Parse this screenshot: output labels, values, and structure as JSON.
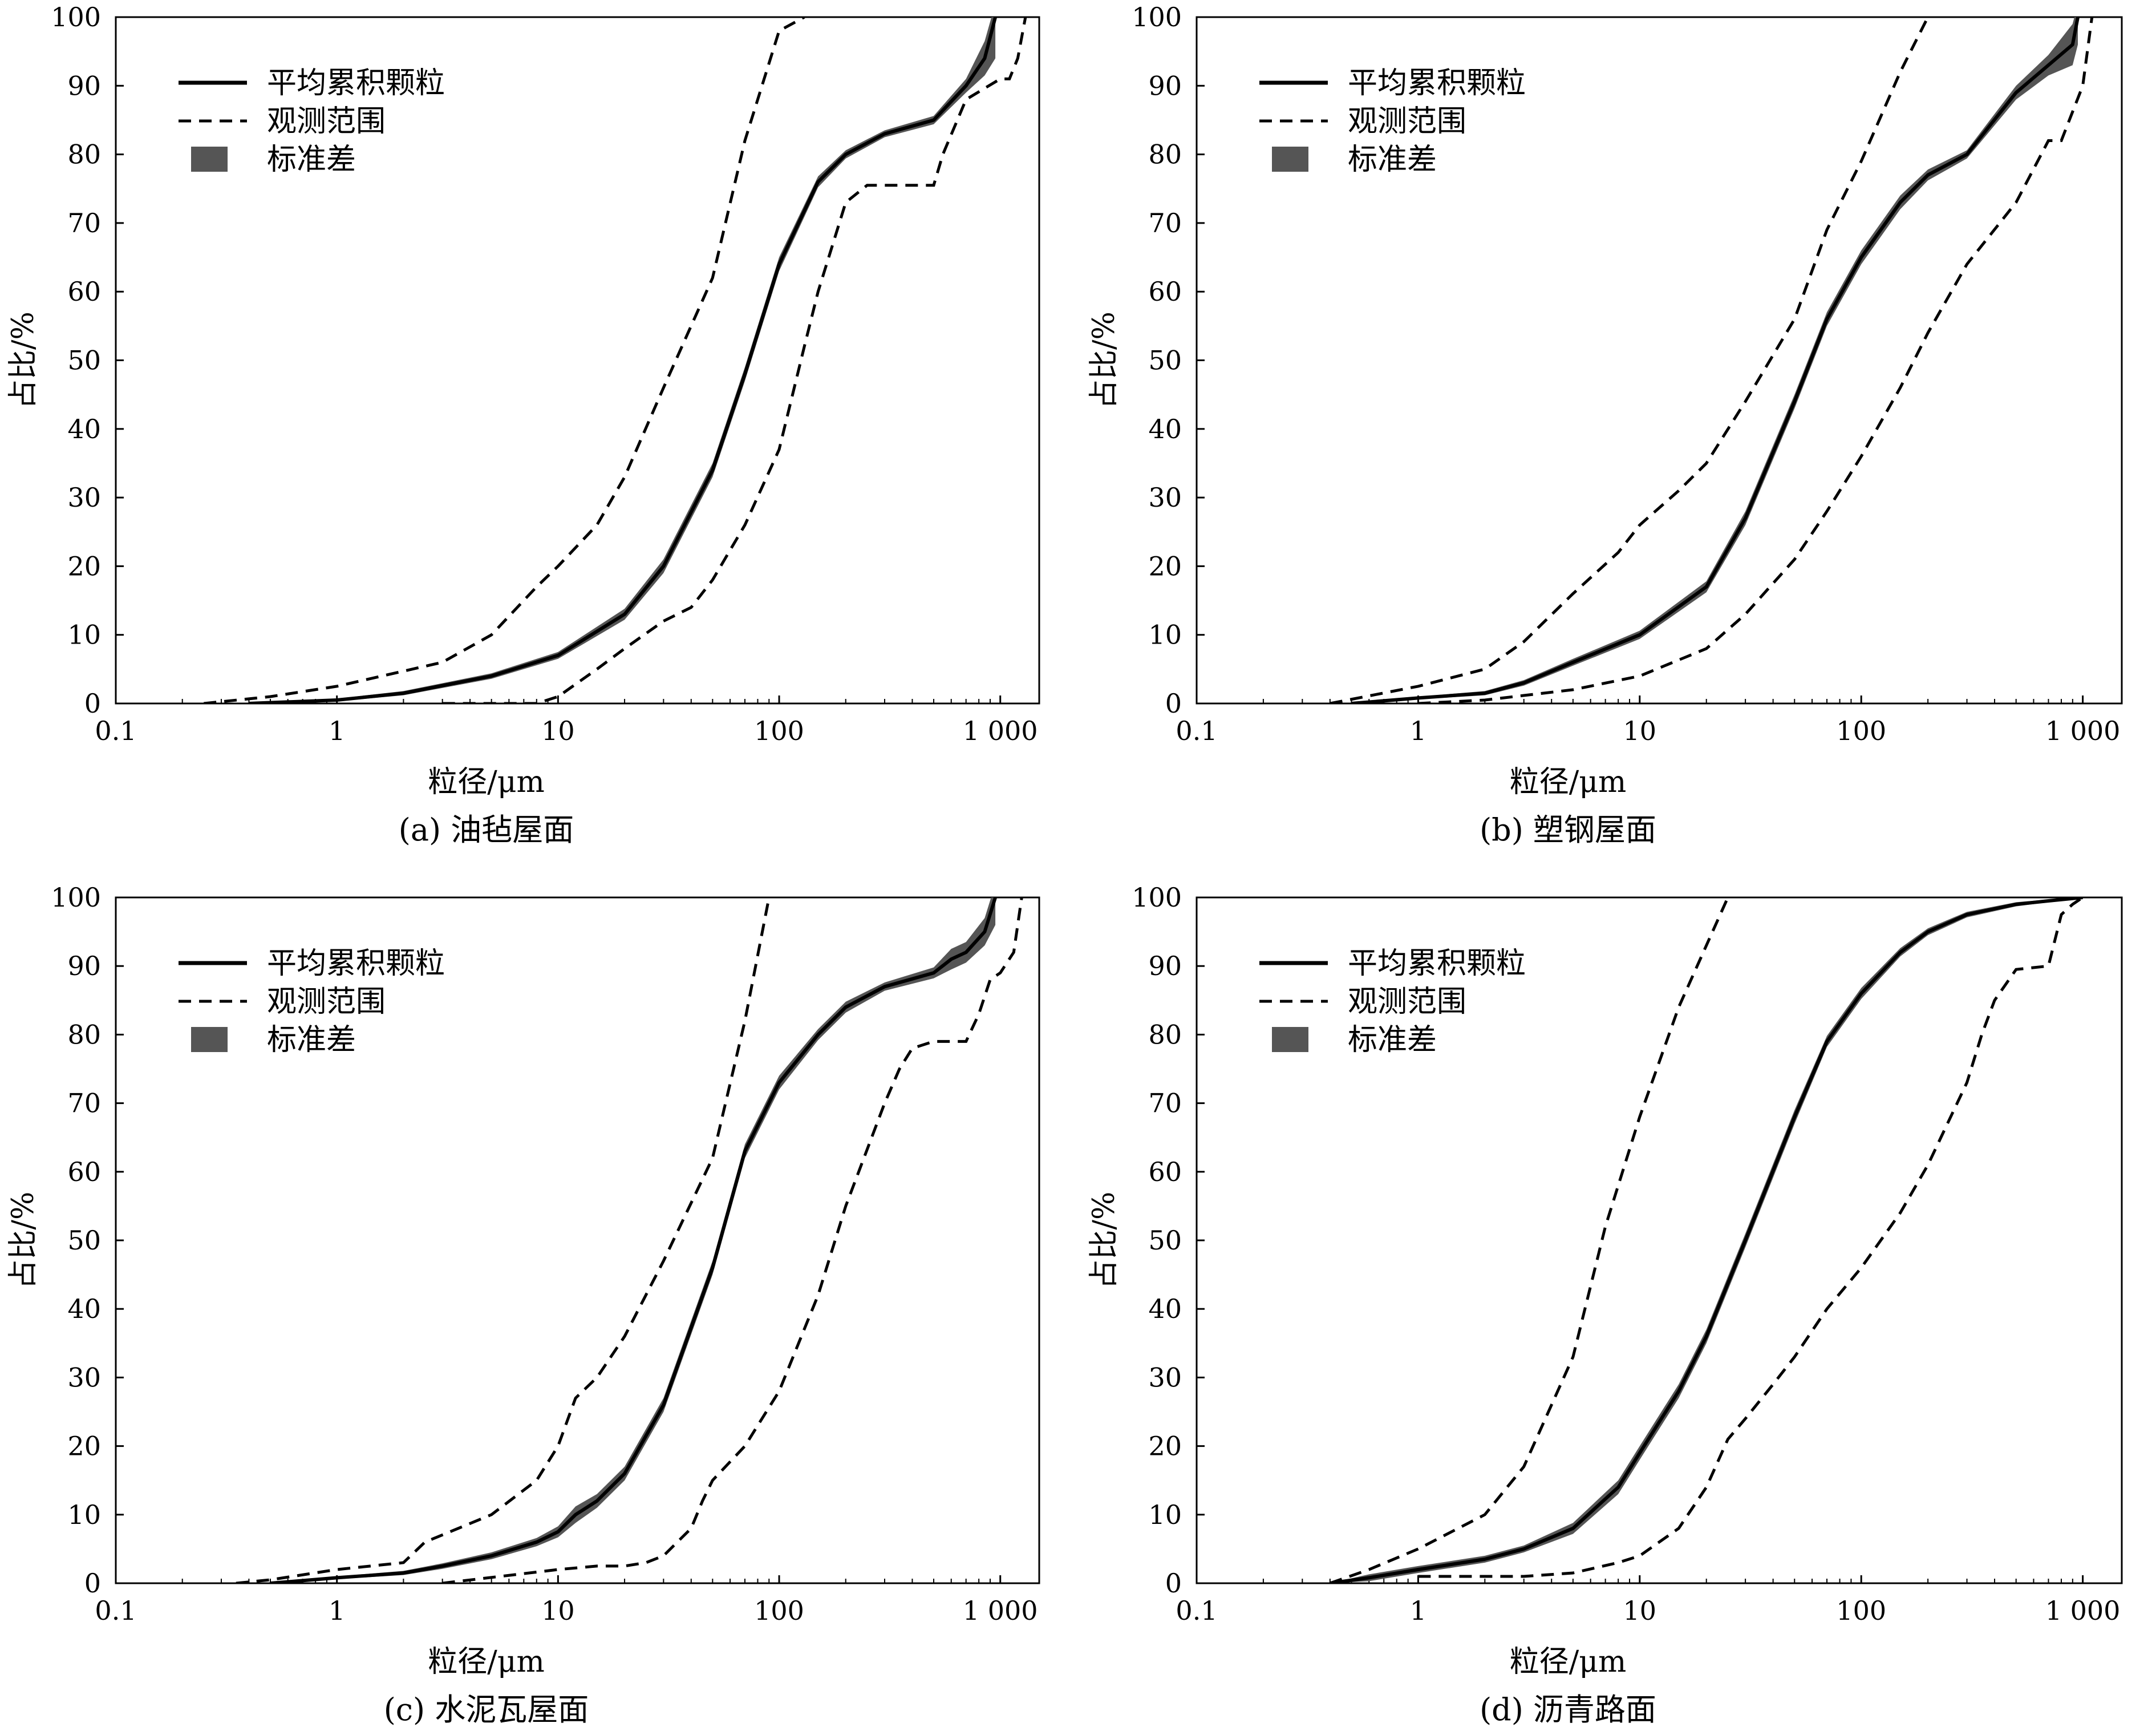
{
  "figure": {
    "background": "#ffffff",
    "mean_color": "#000000",
    "std_color": "#555555",
    "range_color": "#000000"
  },
  "chart_data": [
    {
      "type": "line",
      "caption": "(a)  油毡屋面",
      "xlabel": "粒径/μm",
      "ylabel": "占比/%",
      "x_scale": "log",
      "xlim": [
        0.1,
        1500
      ],
      "ylim": [
        0,
        100
      ],
      "x_ticks": [
        0.1,
        1,
        10,
        100,
        1000
      ],
      "x_tick_labels": [
        "0.1",
        "1",
        "10",
        "100",
        "1 000"
      ],
      "y_ticks": [
        0,
        10,
        20,
        30,
        40,
        50,
        60,
        70,
        80,
        90,
        100
      ],
      "y_tick_labels": [
        "0",
        "10",
        "20",
        "30",
        "40",
        "50",
        "60",
        "70",
        "80",
        "90",
        "100"
      ],
      "legend": {
        "position": "top-left",
        "items": [
          "平均累积颗粒",
          "观测范围",
          "标准差"
        ]
      },
      "series": [
        {
          "name": "平均累积颗粒",
          "role": "mean",
          "x": [
            0.4,
            1,
            2,
            5,
            10,
            20,
            30,
            50,
            70,
            100,
            150,
            200,
            300,
            500,
            700,
            850,
            950
          ],
          "y": [
            0,
            0.5,
            1.5,
            4,
            7,
            13,
            20,
            34,
            48,
            64,
            76,
            80,
            83,
            85,
            90,
            94,
            100
          ],
          "std": [
            0,
            0.2,
            0.3,
            0.4,
            0.5,
            0.8,
            1,
            1,
            1,
            1,
            0.8,
            0.6,
            0.5,
            0.6,
            1,
            2.5,
            6
          ]
        },
        {
          "name": "观测范围",
          "role": "range-upper",
          "x": [
            0.25,
            0.5,
            1,
            3,
            5,
            8,
            10,
            15,
            20,
            30,
            50,
            70,
            100,
            130
          ],
          "y": [
            0,
            1,
            2.5,
            6,
            10,
            17,
            20,
            26,
            33,
            46,
            62,
            82,
            98,
            100
          ]
        },
        {
          "name": "观测范围",
          "role": "range-lower",
          "x": [
            3,
            8,
            10,
            15,
            20,
            30,
            40,
            50,
            70,
            100,
            130,
            150,
            200,
            250,
            300,
            500,
            550,
            700,
            1000,
            1100,
            1200,
            1300
          ],
          "y": [
            0,
            0,
            1,
            5,
            8,
            12,
            14,
            18,
            26,
            37,
            52,
            60,
            73,
            75.5,
            75.5,
            75.5,
            80,
            88,
            91,
            91,
            94,
            100
          ]
        }
      ]
    },
    {
      "type": "line",
      "caption": "(b)  塑钢屋面",
      "xlabel": "粒径/μm",
      "ylabel": "占比/%",
      "x_scale": "log",
      "xlim": [
        0.1,
        1500
      ],
      "ylim": [
        0,
        100
      ],
      "x_ticks": [
        0.1,
        1,
        10,
        100,
        1000
      ],
      "x_tick_labels": [
        "0.1",
        "1",
        "10",
        "100",
        "1 000"
      ],
      "y_ticks": [
        0,
        10,
        20,
        30,
        40,
        50,
        60,
        70,
        80,
        90,
        100
      ],
      "y_tick_labels": [
        "0",
        "10",
        "20",
        "30",
        "40",
        "50",
        "60",
        "70",
        "80",
        "90",
        "100"
      ],
      "legend": {
        "position": "top-left",
        "items": [
          "平均累积颗粒",
          "观测范围",
          "标准差"
        ]
      },
      "series": [
        {
          "name": "平均累积颗粒",
          "role": "mean",
          "x": [
            0.5,
            1,
            2,
            3,
            5,
            10,
            20,
            30,
            50,
            70,
            100,
            150,
            200,
            300,
            500,
            700,
            900,
            950
          ],
          "y": [
            0,
            0.8,
            1.5,
            3,
            6,
            10,
            17,
            27,
            44,
            56,
            65,
            73,
            77,
            80,
            89,
            93,
            96,
            100
          ],
          "std": [
            0,
            0.2,
            0.3,
            0.4,
            0.5,
            0.6,
            0.8,
            1,
            1,
            1,
            1,
            1,
            0.8,
            0.6,
            1,
            1.5,
            3,
            4
          ]
        },
        {
          "name": "观测范围",
          "role": "range-upper",
          "x": [
            0.4,
            1,
            2,
            3,
            5,
            8,
            10,
            15,
            20,
            30,
            50,
            70,
            100,
            150,
            200
          ],
          "y": [
            0,
            2.5,
            5,
            9,
            16,
            22,
            26,
            31,
            35,
            44,
            56,
            69,
            79,
            92,
            100
          ]
        },
        {
          "name": "观测范围",
          "role": "range-lower",
          "x": [
            1,
            2,
            5,
            10,
            20,
            30,
            50,
            70,
            100,
            150,
            200,
            300,
            500,
            700,
            800,
            1000,
            1100
          ],
          "y": [
            0,
            0.5,
            2,
            4,
            8,
            13,
            21,
            28,
            36,
            46,
            54,
            64,
            73,
            82,
            82,
            90,
            100
          ]
        }
      ]
    },
    {
      "type": "line",
      "caption": "(c)  水泥瓦屋面",
      "xlabel": "粒径/μm",
      "ylabel": "占比/%",
      "x_scale": "log",
      "xlim": [
        0.1,
        1500
      ],
      "ylim": [
        0,
        100
      ],
      "x_ticks": [
        0.1,
        1,
        10,
        100,
        1000
      ],
      "x_tick_labels": [
        "0.1",
        "1",
        "10",
        "100",
        "1 000"
      ],
      "y_ticks": [
        0,
        10,
        20,
        30,
        40,
        50,
        60,
        70,
        80,
        90,
        100
      ],
      "y_tick_labels": [
        "0",
        "10",
        "20",
        "30",
        "40",
        "50",
        "60",
        "70",
        "80",
        "90",
        "100"
      ],
      "legend": {
        "position": "top-left",
        "items": [
          "平均累积颗粒",
          "观测范围",
          "标准差"
        ]
      },
      "series": [
        {
          "name": "平均累积颗粒",
          "role": "mean",
          "x": [
            0.5,
            1,
            2,
            3,
            5,
            8,
            10,
            12,
            15,
            20,
            30,
            50,
            70,
            100,
            150,
            200,
            300,
            500,
            600,
            700,
            850,
            950
          ],
          "y": [
            0,
            0.8,
            1.5,
            2.5,
            4,
            6,
            7.5,
            10,
            12,
            16,
            26,
            46,
            63,
            73,
            80,
            84,
            87,
            89,
            91,
            92,
            95,
            100
          ],
          "std": [
            0,
            0.2,
            0.3,
            0.4,
            0.5,
            0.6,
            0.8,
            1.2,
            1,
            1,
            1,
            1,
            1,
            1,
            0.8,
            0.8,
            0.6,
            0.8,
            1.5,
            1.5,
            2,
            4
          ]
        },
        {
          "name": "观测范围",
          "role": "range-upper",
          "x": [
            0.35,
            0.5,
            1,
            2,
            2.5,
            5,
            8,
            10,
            12,
            15,
            20,
            30,
            50,
            70,
            90
          ],
          "y": [
            0,
            0.5,
            2,
            3,
            6,
            10,
            15,
            20,
            27,
            30,
            36,
            47,
            62,
            82,
            100
          ]
        },
        {
          "name": "观测范围",
          "role": "range-lower",
          "x": [
            3,
            10,
            15,
            20,
            25,
            30,
            40,
            45,
            50,
            70,
            100,
            150,
            200,
            300,
            350,
            400,
            500,
            700,
            800,
            900,
            1000,
            1150,
            1250
          ],
          "y": [
            0,
            2,
            2.5,
            2.5,
            3,
            4,
            8,
            12,
            15,
            20,
            28,
            42,
            55,
            70,
            75,
            78,
            79,
            79,
            83,
            88,
            89,
            92,
            100
          ]
        }
      ]
    },
    {
      "type": "line",
      "caption": "(d)  沥青路面",
      "xlabel": "粒径/μm",
      "ylabel": "占比/%",
      "x_scale": "log",
      "xlim": [
        0.1,
        1500
      ],
      "ylim": [
        0,
        100
      ],
      "x_ticks": [
        0.1,
        1,
        10,
        100,
        1000
      ],
      "x_tick_labels": [
        "0.1",
        "1",
        "10",
        "100",
        "1 000"
      ],
      "y_ticks": [
        0,
        10,
        20,
        30,
        40,
        50,
        60,
        70,
        80,
        90,
        100
      ],
      "y_tick_labels": [
        "0",
        "10",
        "20",
        "30",
        "40",
        "50",
        "60",
        "70",
        "80",
        "90",
        "100"
      ],
      "legend": {
        "position": "top-left",
        "items": [
          "平均累积颗粒",
          "观测范围",
          "标准差"
        ]
      },
      "series": [
        {
          "name": "平均累积颗粒",
          "role": "mean",
          "x": [
            0.4,
            0.6,
            1,
            2,
            3,
            5,
            8,
            10,
            15,
            20,
            30,
            50,
            70,
            100,
            150,
            200,
            300,
            500,
            700,
            1000
          ],
          "y": [
            0,
            0.8,
            2,
            3.5,
            5,
            8,
            14,
            19,
            28,
            36,
            50,
            68,
            79,
            86,
            92,
            95,
            97.5,
            99,
            99.5,
            100
          ],
          "std": [
            0,
            0.5,
            0.5,
            0.5,
            0.5,
            0.8,
            1,
            1,
            1,
            1,
            1,
            1,
            0.8,
            0.8,
            0.6,
            0.5,
            0.4,
            0.3,
            0.2,
            0
          ]
        },
        {
          "name": "观测范围",
          "role": "range-upper",
          "x": [
            0.4,
            0.6,
            1,
            2,
            3,
            5,
            7,
            10,
            15,
            20,
            25
          ],
          "y": [
            0,
            2,
            5,
            10,
            17,
            33,
            52,
            68,
            84,
            93,
            100
          ]
        },
        {
          "name": "观测范围",
          "role": "range-lower",
          "x": [
            1,
            3,
            5,
            8,
            10,
            15,
            20,
            25,
            30,
            40,
            50,
            70,
            100,
            150,
            200,
            300,
            350,
            400,
            500,
            700,
            800,
            900,
            1000
          ],
          "y": [
            1,
            1,
            1.5,
            3,
            4,
            8,
            14,
            21,
            24,
            29,
            33,
            40,
            46,
            54,
            61,
            73,
            80,
            85,
            89.5,
            90,
            97.5,
            99,
            100
          ]
        }
      ]
    }
  ]
}
